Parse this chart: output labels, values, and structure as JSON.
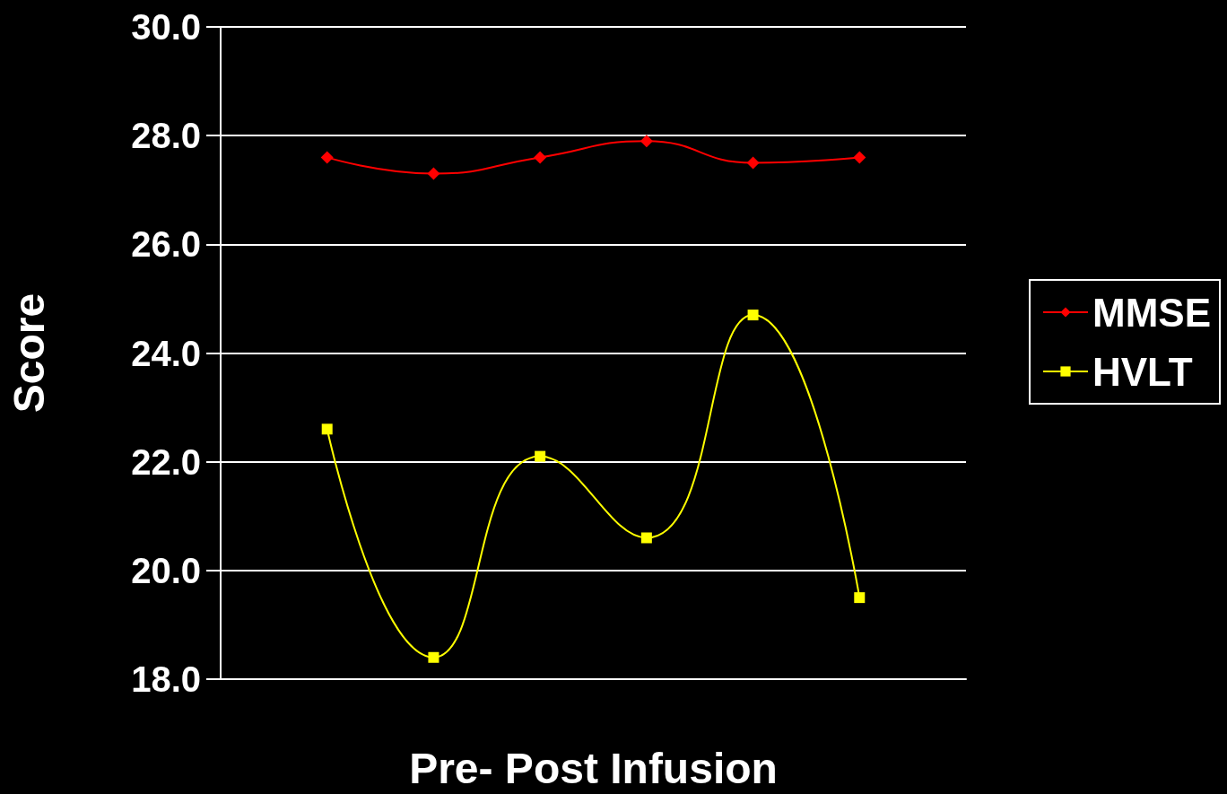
{
  "chart_data": {
    "type": "line",
    "xlabel": "Pre- Post Infusion",
    "ylabel": "Score",
    "categories": [
      null,
      null,
      null,
      null,
      null,
      null
    ],
    "series": [
      {
        "name": "MMSE",
        "color": "#ff0000",
        "marker": "diamond",
        "values": [
          27.6,
          27.3,
          27.6,
          27.9,
          27.5,
          27.6
        ]
      },
      {
        "name": "HVLT",
        "color": "#ffff00",
        "marker": "square",
        "values": [
          22.6,
          18.4,
          22.1,
          20.6,
          24.7,
          19.5
        ]
      }
    ],
    "ylim": [
      18,
      30
    ],
    "yticks": [
      {
        "value": 18,
        "label": "18.0"
      },
      {
        "value": 20,
        "label": "20.0"
      },
      {
        "value": 22,
        "label": "22.0"
      },
      {
        "value": 24,
        "label": "24.0"
      },
      {
        "value": 26,
        "label": "26.0"
      },
      {
        "value": 28,
        "label": "28.0"
      },
      {
        "value": 30,
        "label": "30.0"
      }
    ],
    "grid": "y",
    "legend": "right",
    "tick_labels": "y"
  }
}
